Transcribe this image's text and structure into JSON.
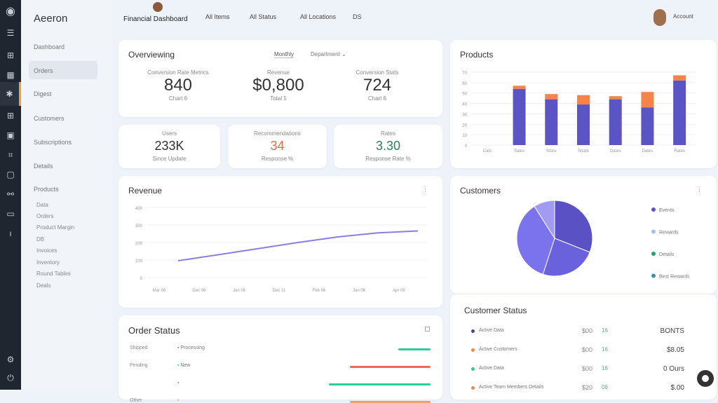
{
  "app": {
    "brand": "Aeeron"
  },
  "topbar": {
    "title": "Financial Dashboard",
    "nav": [
      "All Items",
      "All Status",
      "All Locations",
      "DS"
    ],
    "user": "Account"
  },
  "sidebar": {
    "items": [
      "Dashboard",
      "Orders",
      "Digest",
      "Customers",
      "Subscriptions",
      "Details",
      "Products"
    ],
    "subitems": [
      "Data",
      "Orders",
      "Product Margin",
      "DB",
      "Invoices",
      "Inventory",
      "Round Tables",
      "Deals"
    ]
  },
  "overview": {
    "title": "Overviewing",
    "tab_active": "Monthly",
    "tab_dropdown": "Department",
    "metrics": [
      {
        "label": "Conversion Rate Metrics",
        "value": "840",
        "sub": "Chart 6"
      },
      {
        "label": "Revenue",
        "value": "$0,800",
        "sub": "Total 5"
      },
      {
        "label": "Conversion Stats",
        "value": "724",
        "sub": "Chart 6"
      }
    ]
  },
  "kpis": [
    {
      "label": "Users",
      "value": "233K",
      "sub": "Since Update",
      "color": "#333333"
    },
    {
      "label": "Recommendations",
      "value": "34",
      "sub": "Response %",
      "color": "#e8694a"
    },
    {
      "label": "Rates",
      "value": "3.30",
      "sub": "Response Rate %",
      "color": "#2f7d5a"
    }
  ],
  "products_chart": {
    "title": "Products",
    "chart_data": {
      "type": "bar",
      "stacked": true,
      "categories": [
        "Cats",
        "Sales",
        "Store",
        "Share",
        "Dates",
        "Dates",
        "Rates"
      ],
      "yticks": [
        "0",
        "10",
        "20",
        "30",
        "40",
        "50",
        "60",
        "70"
      ],
      "ylim": [
        0,
        70
      ],
      "series": [
        {
          "values": [
            0,
            54,
            44,
            39,
            44,
            36,
            62
          ],
          "color": "#5b54c4"
        },
        {
          "values": [
            0,
            3,
            5,
            9,
            3,
            15,
            5
          ],
          "color": "#f5844a"
        }
      ],
      "grid": true
    }
  },
  "revenue_chart": {
    "title": "Revenue",
    "menu_icon": "more-icon",
    "chart_data": {
      "type": "line",
      "categories": [
        "Mar 06",
        "Dec 06",
        "Jan 06",
        "Dec 11",
        "Feb 06",
        "Jan 06",
        "Apr 06"
      ],
      "yticks": [
        "0",
        "100",
        "200",
        "300",
        "400"
      ],
      "ylim": [
        0,
        400
      ],
      "values": [
        96,
        130,
        165,
        200,
        232,
        255,
        266
      ],
      "color": "#8a7ee0",
      "grid": true
    }
  },
  "customers_chart": {
    "title": "Customers",
    "chart_data": {
      "type": "pie",
      "slices": [
        {
          "name": "Events",
          "value": 31,
          "color": "#5a52c4"
        },
        {
          "name": "Rewards",
          "value": 24,
          "color": "#6a62dc"
        },
        {
          "name": "Details",
          "value": 36,
          "color": "#7b73ec"
        },
        {
          "name": "Best Rewards",
          "value": 9,
          "color": "#a29bf2"
        }
      ],
      "legend": [
        {
          "name": "Events",
          "color": "#5b54c4"
        },
        {
          "name": "Rewards",
          "color": "#9cc3f0"
        },
        {
          "name": "Details",
          "color": "#2a9d7f"
        },
        {
          "name": "Best Rewards",
          "color": "#3a8fb0"
        }
      ]
    }
  },
  "order_status": {
    "title": "Order Status",
    "rows": [
      {
        "label": "Shipped",
        "tag": "Processing",
        "tag_color": "#e8694a",
        "bar": 0.2,
        "bar_color": "#2ecc9a"
      },
      {
        "label": "Pending",
        "tag": "New",
        "tag_color": "#2ecc9a",
        "bar": 0.5,
        "bar_color": "#f06a55"
      },
      {
        "label": "",
        "tag": "",
        "tag_color": "#2ecc9a",
        "bar": 0.63,
        "bar_color": "#2ecc9a"
      },
      {
        "label": "Other",
        "tag": "",
        "tag_color": "#f0a060",
        "bar": 0.5,
        "bar_color": "#f0a060"
      }
    ]
  },
  "customer_status": {
    "title": "Customer Status",
    "rows": [
      {
        "name": "Active Data",
        "qty": "$00",
        "pct": "16",
        "value": "BONTS",
        "color": "#3d4a8a"
      },
      {
        "name": "Active Customers",
        "qty": "$00",
        "pct": "16",
        "value": "$8.05",
        "color": "#f0884a"
      },
      {
        "name": "Active Data",
        "qty": "$00",
        "pct": "16",
        "value": "0 Ours",
        "color": "#2ecc8e"
      },
      {
        "name": "Active Team Members Details",
        "qty": "$20",
        "pct": "06",
        "value": "$.00",
        "color": "#f0884a"
      }
    ]
  }
}
